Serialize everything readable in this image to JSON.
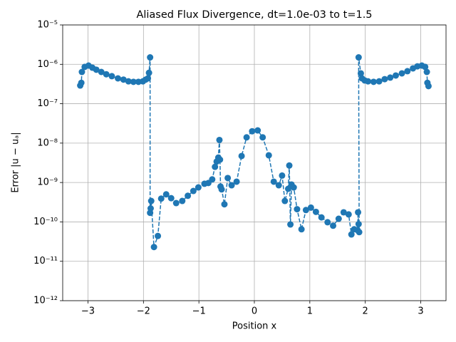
{
  "chart_data": {
    "type": "line",
    "title": "Aliased Flux Divergence, dt=1.0e-03 to t=1.5",
    "x_label": "Position x",
    "y_label": "Error |u − uₐ|",
    "color": "#1f77b4",
    "log_y": true,
    "grid": true,
    "xlim": [
      -3.456,
      3.456
    ],
    "ylim": [
      1e-12,
      1e-05
    ],
    "xticks": [
      {
        "value": -3,
        "label": "−3"
      },
      {
        "value": -2,
        "label": "−2"
      },
      {
        "value": -1,
        "label": "−1"
      },
      0,
      1,
      2,
      3
    ],
    "yticks": [
      {
        "value": 1e-12,
        "label": "10⁻¹²"
      },
      {
        "value": 1e-11,
        "label": "10⁻¹¹"
      },
      {
        "value": 1e-10,
        "label": "10⁻¹⁰"
      },
      {
        "value": 1e-09,
        "label": "10⁻⁹"
      },
      {
        "value": 1e-08,
        "label": "10⁻⁸"
      },
      {
        "value": 1e-07,
        "label": "10⁻⁷"
      },
      {
        "value": 1e-06,
        "label": "10⁻⁶"
      },
      {
        "value": 1e-05,
        "label": "10⁻⁵"
      }
    ],
    "x": [
      -3.14,
      -3.12,
      -3.11,
      -3.06,
      -2.99,
      -2.92,
      -2.85,
      -2.76,
      -2.67,
      -2.57,
      -2.46,
      -2.36,
      -2.27,
      -2.18,
      -2.09,
      -2.01,
      -1.96,
      -1.92,
      -1.9,
      -1.88,
      -1.88,
      -1.87,
      -1.86,
      -1.81,
      -1.74,
      -1.68,
      -1.59,
      -1.5,
      -1.41,
      -1.3,
      -1.2,
      -1.1,
      -1.01,
      -0.9,
      -0.83,
      -0.76,
      -0.71,
      -0.68,
      -0.65,
      -0.63,
      -0.62,
      -0.61,
      -0.59,
      -0.54,
      -0.48,
      -0.41,
      -0.32,
      -0.23,
      -0.14,
      -0.04,
      0.06,
      0.15,
      0.26,
      0.35,
      0.44,
      0.5,
      0.55,
      0.61,
      0.63,
      0.65,
      0.67,
      0.71,
      0.77,
      0.85,
      0.93,
      1.02,
      1.11,
      1.21,
      1.32,
      1.42,
      1.52,
      1.61,
      1.7,
      1.75,
      1.8,
      1.86,
      1.87,
      1.88,
      1.89,
      1.88,
      1.92,
      1.94,
      1.99,
      2.05,
      2.15,
      2.25,
      2.35,
      2.45,
      2.55,
      2.66,
      2.76,
      2.86,
      2.94,
      3.02,
      3.08,
      3.11,
      3.12,
      3.14
    ],
    "values": [
      2.9e-07,
      3.4e-07,
      6.4e-07,
      8.6e-07,
      9.3e-07,
      8.2e-07,
      7.3e-07,
      6.4e-07,
      5.6e-07,
      5e-07,
      4.4e-07,
      4.1e-07,
      3.7e-07,
      3.6e-07,
      3.6e-07,
      3.7e-07,
      4.1e-07,
      4.4e-07,
      6.1e-07,
      1.5e-06,
      1.7e-10,
      2.2e-10,
      3.4e-10,
      2.3e-11,
      4.4e-11,
      3.9e-10,
      5e-10,
      4e-10,
      3e-10,
      3.4e-10,
      4.6e-10,
      6.1e-10,
      7.5e-10,
      9.3e-10,
      9.7e-10,
      1.2e-09,
      2.5e-09,
      3.4e-09,
      4.3e-09,
      1.2e-08,
      3.8e-09,
      7.9e-10,
      6.7e-10,
      2.8e-10,
      1.3e-09,
      8.5e-10,
      1.05e-09,
      4.7e-09,
      1.4e-08,
      2e-08,
      2.1e-08,
      1.4e-08,
      4.9e-09,
      1.05e-09,
      8.5e-10,
      1.5e-09,
      3.4e-10,
      6.9e-10,
      2.7e-09,
      8.6e-11,
      8.9e-10,
      7.5e-10,
      2.1e-10,
      6.5e-11,
      2e-10,
      2.3e-10,
      1.8e-10,
      1.3e-10,
      9.8e-11,
      8e-11,
      1.2e-10,
      1.75e-10,
      1.55e-10,
      4.8e-11,
      6.5e-11,
      6.2e-11,
      1.75e-10,
      8.8e-11,
      5.5e-11,
      1.5e-06,
      5.9e-07,
      4.4e-07,
      3.9e-07,
      3.7e-07,
      3.6e-07,
      3.7e-07,
      4.2e-07,
      4.6e-07,
      5.2e-07,
      5.9e-07,
      6.7e-07,
      7.9e-07,
      8.9e-07,
      9.3e-07,
      8.6e-07,
      6.4e-07,
      3.4e-07,
      2.8e-07
    ]
  }
}
